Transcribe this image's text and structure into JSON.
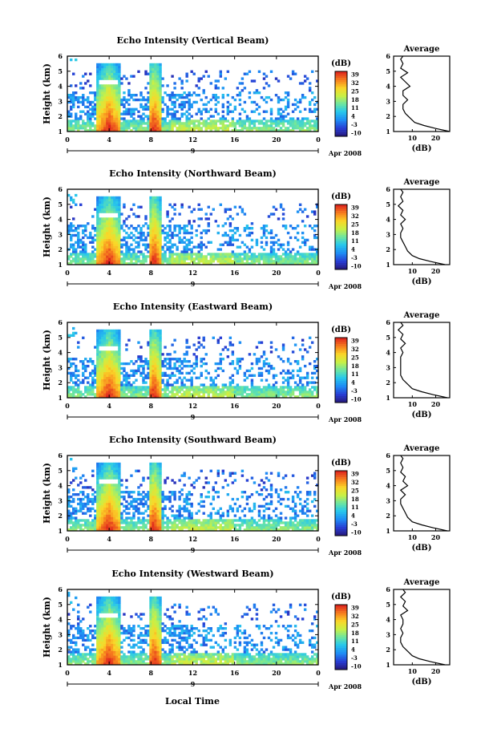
{
  "figure": {
    "xaxis_shared_label": "Local Time",
    "date_label": "Apr 2008",
    "day_label": "9",
    "colorbar_unit": "(dB)",
    "colorbar_ticks": [
      "39",
      "32",
      "25",
      "18",
      "11",
      "4",
      "-3",
      "-10"
    ],
    "height_label": "Height (km)",
    "average_title": "Average",
    "average_xlabel": "(dB)"
  },
  "chart_data": [
    {
      "type": "heatmap",
      "title": "Echo Intensity (Vertical Beam)",
      "xlabel": "",
      "ylabel": "Height (km)",
      "x_ticks": [
        "0",
        "4",
        "8",
        "12",
        "16",
        "20",
        "0"
      ],
      "xlim": [
        0,
        24
      ],
      "y_ticks": [
        "1",
        "2",
        "3",
        "4",
        "5",
        "6"
      ],
      "ylim": [
        1,
        6
      ],
      "colorbar": {
        "label": "(dB)",
        "range": [
          -10,
          39
        ]
      },
      "average": {
        "title": "Average",
        "xlabel": "(dB)",
        "x_ticks": [
          "10",
          "20"
        ],
        "xlim": [
          2,
          26
        ],
        "profile": [
          [
            26,
            1.0
          ],
          [
            20,
            1.2
          ],
          [
            15,
            1.4
          ],
          [
            11,
            1.6
          ],
          [
            9,
            1.9
          ],
          [
            7,
            2.2
          ],
          [
            6,
            2.5
          ],
          [
            6,
            2.8
          ],
          [
            8,
            3.1
          ],
          [
            6,
            3.4
          ],
          [
            6,
            3.7
          ],
          [
            9,
            4.0
          ],
          [
            7,
            4.3
          ],
          [
            5,
            4.6
          ],
          [
            8,
            4.9
          ],
          [
            5,
            5.2
          ],
          [
            6,
            5.5
          ],
          [
            5,
            5.8
          ],
          [
            6,
            6.0
          ]
        ]
      }
    },
    {
      "type": "heatmap",
      "title": "Echo Intensity (Northward Beam)",
      "xlabel": "",
      "ylabel": "Height (km)",
      "x_ticks": [
        "0",
        "4",
        "8",
        "12",
        "16",
        "20",
        "0"
      ],
      "xlim": [
        0,
        24
      ],
      "y_ticks": [
        "1",
        "2",
        "3",
        "4",
        "5",
        "6"
      ],
      "ylim": [
        1,
        6
      ],
      "colorbar": {
        "label": "(dB)",
        "range": [
          -10,
          39
        ]
      },
      "average": {
        "title": "Average",
        "xlabel": "(dB)",
        "x_ticks": [
          "10",
          "20"
        ],
        "xlim": [
          2,
          26
        ],
        "profile": [
          [
            24,
            1.0
          ],
          [
            18,
            1.2
          ],
          [
            13,
            1.4
          ],
          [
            10,
            1.6
          ],
          [
            8,
            1.9
          ],
          [
            7,
            2.2
          ],
          [
            6,
            2.5
          ],
          [
            5,
            2.8
          ],
          [
            5,
            3.1
          ],
          [
            6,
            3.4
          ],
          [
            5,
            3.7
          ],
          [
            7,
            4.0
          ],
          [
            5,
            4.3
          ],
          [
            6,
            4.6
          ],
          [
            4,
            4.9
          ],
          [
            6,
            5.2
          ],
          [
            5,
            5.5
          ],
          [
            6,
            5.8
          ],
          [
            5,
            6.0
          ]
        ]
      }
    },
    {
      "type": "heatmap",
      "title": "Echo Intensity (Eastward Beam)",
      "xlabel": "",
      "ylabel": "Height (km)",
      "x_ticks": [
        "0",
        "4",
        "8",
        "12",
        "16",
        "20",
        "0"
      ],
      "xlim": [
        0,
        24
      ],
      "y_ticks": [
        "1",
        "2",
        "3",
        "4",
        "5",
        "6"
      ],
      "ylim": [
        1,
        6
      ],
      "colorbar": {
        "label": "(dB)",
        "range": [
          -10,
          39
        ]
      },
      "average": {
        "title": "Average",
        "xlabel": "(dB)",
        "x_ticks": [
          "10",
          "20"
        ],
        "xlim": [
          2,
          26
        ],
        "profile": [
          [
            25,
            1.0
          ],
          [
            19,
            1.2
          ],
          [
            14,
            1.4
          ],
          [
            10,
            1.6
          ],
          [
            8,
            1.9
          ],
          [
            6,
            2.2
          ],
          [
            5,
            2.5
          ],
          [
            5,
            2.8
          ],
          [
            5,
            3.1
          ],
          [
            5,
            3.4
          ],
          [
            5,
            3.7
          ],
          [
            6,
            4.0
          ],
          [
            5,
            4.3
          ],
          [
            7,
            4.6
          ],
          [
            5,
            4.9
          ],
          [
            6,
            5.2
          ],
          [
            4,
            5.5
          ],
          [
            6,
            5.8
          ],
          [
            5,
            6.0
          ]
        ]
      }
    },
    {
      "type": "heatmap",
      "title": "Echo Intensity (Southward Beam)",
      "xlabel": "",
      "ylabel": "Height (km)",
      "x_ticks": [
        "0",
        "4",
        "8",
        "12",
        "16",
        "20",
        "0"
      ],
      "xlim": [
        0,
        24
      ],
      "y_ticks": [
        "1",
        "2",
        "3",
        "4",
        "5",
        "6"
      ],
      "ylim": [
        1,
        6
      ],
      "colorbar": {
        "label": "(dB)",
        "range": [
          -10,
          39
        ]
      },
      "average": {
        "title": "Average",
        "xlabel": "(dB)",
        "x_ticks": [
          "10",
          "20"
        ],
        "xlim": [
          2,
          26
        ],
        "profile": [
          [
            25,
            1.0
          ],
          [
            19,
            1.2
          ],
          [
            14,
            1.4
          ],
          [
            10,
            1.6
          ],
          [
            8,
            1.9
          ],
          [
            7,
            2.2
          ],
          [
            6,
            2.5
          ],
          [
            5,
            2.8
          ],
          [
            5,
            3.1
          ],
          [
            7,
            3.4
          ],
          [
            5,
            3.7
          ],
          [
            8,
            4.0
          ],
          [
            6,
            4.3
          ],
          [
            7,
            4.6
          ],
          [
            5,
            4.9
          ],
          [
            6,
            5.2
          ],
          [
            5,
            5.5
          ],
          [
            6,
            5.8
          ],
          [
            5,
            6.0
          ]
        ]
      }
    },
    {
      "type": "heatmap",
      "title": "Echo Intensity (Westward Beam)",
      "xlabel": "Local Time",
      "ylabel": "Height (km)",
      "x_ticks": [
        "0",
        "4",
        "8",
        "12",
        "16",
        "20",
        "0"
      ],
      "xlim": [
        0,
        24
      ],
      "y_ticks": [
        "1",
        "2",
        "3",
        "4",
        "5",
        "6"
      ],
      "ylim": [
        1,
        6
      ],
      "colorbar": {
        "label": "(dB)",
        "range": [
          -10,
          39
        ]
      },
      "average": {
        "title": "Average",
        "xlabel": "(dB)",
        "x_ticks": [
          "10",
          "20"
        ],
        "xlim": [
          2,
          26
        ],
        "profile": [
          [
            24,
            1.0
          ],
          [
            18,
            1.2
          ],
          [
            13,
            1.4
          ],
          [
            10,
            1.6
          ],
          [
            8,
            1.9
          ],
          [
            6,
            2.2
          ],
          [
            5,
            2.5
          ],
          [
            5,
            2.8
          ],
          [
            6,
            3.1
          ],
          [
            5,
            3.4
          ],
          [
            6,
            3.7
          ],
          [
            6,
            4.0
          ],
          [
            5,
            4.3
          ],
          [
            8,
            4.6
          ],
          [
            6,
            4.9
          ],
          [
            7,
            5.2
          ],
          [
            5,
            5.5
          ],
          [
            7,
            5.8
          ],
          [
            6,
            6.0
          ]
        ]
      }
    }
  ]
}
